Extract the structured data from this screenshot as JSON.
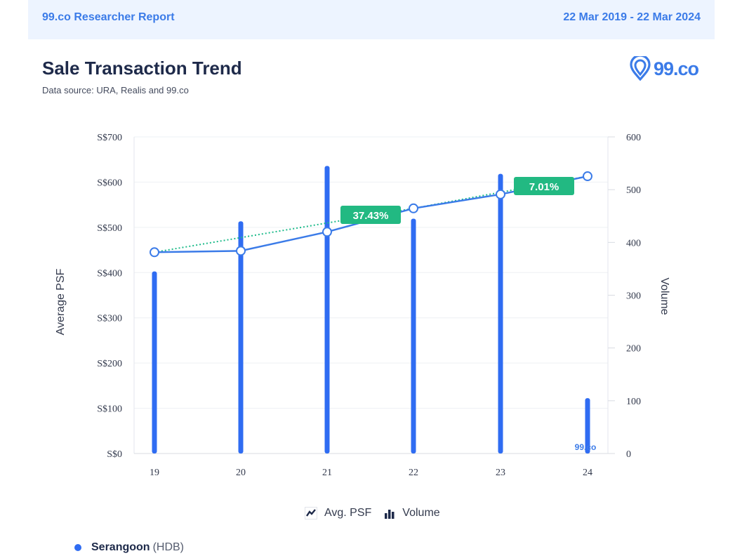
{
  "header": {
    "brand_report": "99.co Researcher Report",
    "date_range": "22 Mar 2019 - 22 Mar 2024"
  },
  "title": "Sale Transaction Trend",
  "source": "Data source: URA, Realis and 99.co",
  "logo": {
    "text": "99.co",
    "icon": "location-pin-icon"
  },
  "legend": [
    {
      "label": "Avg. PSF",
      "icon": "line-chart-icon"
    },
    {
      "label": "Volume",
      "icon": "bar-chart-icon"
    }
  ],
  "series_label": {
    "name": "Serangoon",
    "type": "(HDB)"
  },
  "colors": {
    "accent": "#3b7be8",
    "bar": "#2f6cf2",
    "trend": "#1dbb8a",
    "badge": "#22b982"
  },
  "chart_data": {
    "type": "bar",
    "categories": [
      "19",
      "20",
      "21",
      "22",
      "23",
      "24"
    ],
    "ylabel": "Average PSF",
    "y2label": "Volume",
    "ylim": [
      0,
      700
    ],
    "y2lim": [
      0,
      600
    ],
    "yticks": [
      "S$0",
      "S$100",
      "S$200",
      "S$300",
      "S$400",
      "S$500",
      "S$600",
      "S$700"
    ],
    "y2ticks": [
      "0",
      "100",
      "200",
      "300",
      "400",
      "500",
      "600"
    ],
    "series": [
      {
        "name": "Volume",
        "type": "bar",
        "axis": "right",
        "values": [
          345,
          440,
          545,
          445,
          530,
          105
        ]
      },
      {
        "name": "Avg. PSF",
        "type": "line",
        "axis": "left",
        "values": [
          445,
          448,
          490,
          542,
          573,
          613
        ]
      }
    ],
    "trends": [
      {
        "label": "37.43%",
        "from_index": 0,
        "to_index": 3
      },
      {
        "label": "7.01%",
        "from_index": 3,
        "to_index": 5
      }
    ],
    "watermark": "99.co",
    "grid": true
  }
}
